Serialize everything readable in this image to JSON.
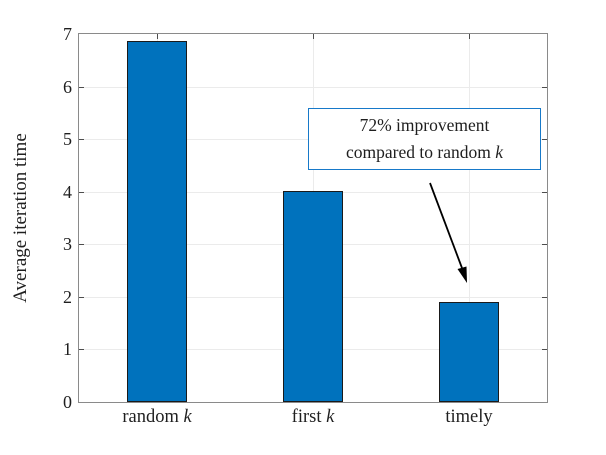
{
  "figure": {
    "background": "#ffffff",
    "bar_fill_color": "#0072BD",
    "bar_edge_color": "#1a1a1a",
    "grid_color": "#ebebeb",
    "axis_frame_color": "#8a8a8a",
    "tick_color": "#4d4d4d",
    "text_color": "#1f1f1f",
    "annotation_border_color": "#1779c9",
    "arrow_color": "#000000"
  },
  "chart_data": {
    "type": "bar",
    "categories": [
      "random k",
      "first k",
      "timely"
    ],
    "values": [
      6.87,
      4.02,
      1.9
    ],
    "title": "",
    "xlabel": "",
    "ylabel": "Average iteration time",
    "ylim": [
      0,
      7
    ],
    "yticks": [
      0,
      1,
      2,
      3,
      4,
      5,
      6,
      7
    ],
    "grid": true,
    "legend": null,
    "annotation": {
      "lines": [
        "72% improvement",
        "compared to random k"
      ],
      "arrow_target_category": "timely"
    }
  }
}
